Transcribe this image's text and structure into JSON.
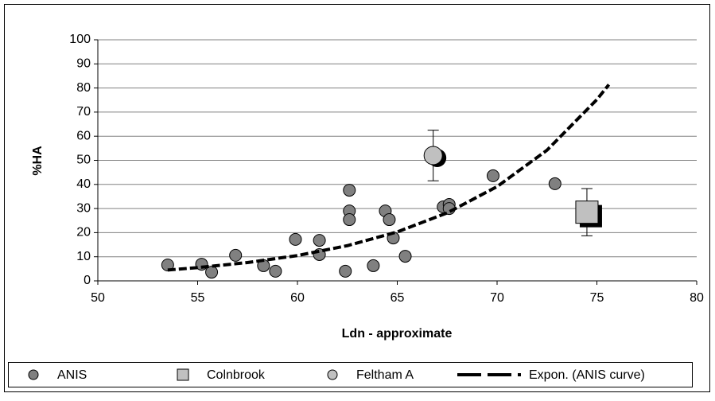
{
  "chart_data": {
    "type": "scatter",
    "xlabel": "Ldn - approximate",
    "ylabel": "%HA",
    "xlim": [
      50,
      80
    ],
    "xticks": [
      50,
      55,
      60,
      65,
      70,
      75,
      80
    ],
    "ylim": [
      0,
      100
    ],
    "yticks": [
      0,
      10,
      20,
      30,
      40,
      50,
      60,
      70,
      80,
      90,
      100
    ],
    "grid": true,
    "legend": "bottom",
    "series": [
      {
        "name": "ANIS",
        "type": "scatter",
        "marker": "circle",
        "color": "#808080",
        "x": [
          53.5,
          55.2,
          55.7,
          56.9,
          58.3,
          58.9,
          59.9,
          61.1,
          61.1,
          62.4,
          62.6,
          62.6,
          62.6,
          63.8,
          64.4,
          64.6,
          64.8,
          65.4,
          67.3,
          67.6,
          67.6,
          69.8,
          72.9
        ],
        "values": [
          6.6,
          6.9,
          3.6,
          10.6,
          6.3,
          4.0,
          17.2,
          16.8,
          10.9,
          4.0,
          37.6,
          29.0,
          25.4,
          6.3,
          29.0,
          25.4,
          17.8,
          10.2,
          30.7,
          31.7,
          30.0,
          43.6,
          40.3
        ]
      },
      {
        "name": "Colnbrook",
        "type": "scatter",
        "marker": "square",
        "color": "#c0c0c0",
        "x": [
          74.5
        ],
        "values": [
          28.5
        ],
        "errors": [
          9.8
        ]
      },
      {
        "name": "Feltham A",
        "type": "scatter",
        "marker": "circle",
        "color": "#c0c0c0",
        "x": [
          66.8
        ],
        "values": [
          52
        ],
        "errors": [
          10.5
        ]
      },
      {
        "name": "Expon. (ANIS curve)",
        "type": "line",
        "color": "#000000",
        "x": [
          53.5,
          55,
          57.5,
          60,
          62.5,
          65,
          67.5,
          70,
          72.5,
          75,
          75.6
        ],
        "values": [
          4.5,
          5.5,
          7.6,
          10.5,
          14.6,
          20.3,
          28.2,
          39.1,
          54.2,
          75.2,
          81.4
        ]
      }
    ]
  }
}
